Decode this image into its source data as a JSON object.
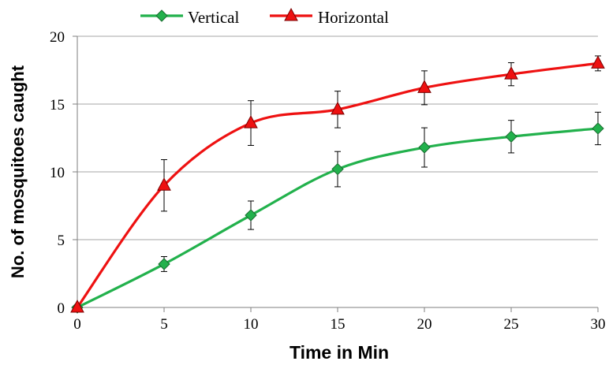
{
  "chart_data": {
    "type": "line",
    "xlabel": "Time in Min",
    "ylabel": "No. of mosquitoes caught",
    "x": [
      0,
      5,
      10,
      15,
      20,
      25,
      30
    ],
    "xticks": [
      0,
      5,
      10,
      15,
      20,
      25,
      30
    ],
    "yticks": [
      0,
      5,
      10,
      15,
      20
    ],
    "xlim": [
      0,
      30
    ],
    "ylim": [
      0,
      20
    ],
    "grid": "horizontal",
    "legend": "top-center",
    "series": [
      {
        "name": "Vertical",
        "marker": "diamond",
        "color": "#22b14c",
        "values": [
          0,
          3.2,
          6.8,
          10.2,
          11.8,
          12.6,
          13.2
        ],
        "errors": [
          0,
          0.55,
          1.05,
          1.3,
          1.45,
          1.2,
          1.2
        ]
      },
      {
        "name": "Horizontal",
        "marker": "triangle",
        "color": "#ee1111",
        "values": [
          0,
          9.0,
          13.6,
          14.6,
          16.2,
          17.2,
          18.0
        ],
        "errors": [
          0,
          1.9,
          1.65,
          1.35,
          1.25,
          0.85,
          0.55
        ]
      }
    ]
  }
}
